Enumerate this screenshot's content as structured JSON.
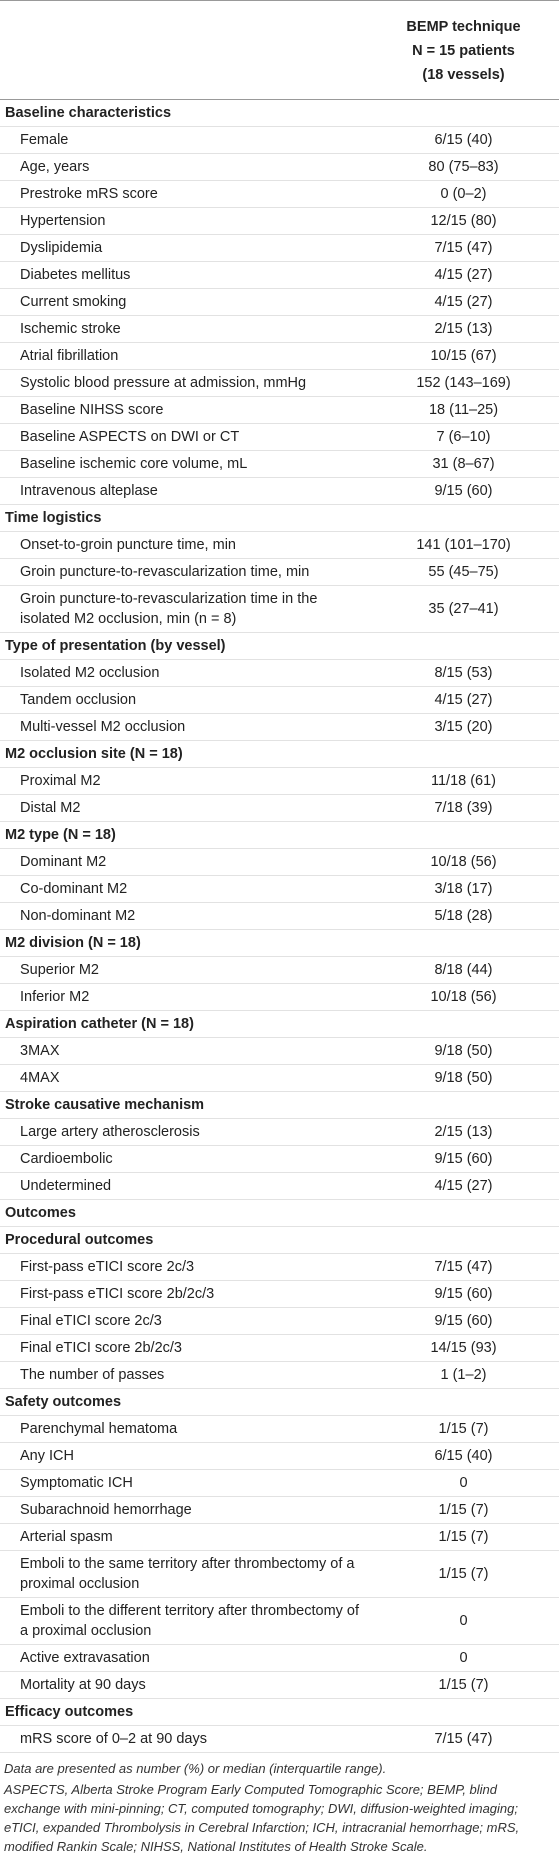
{
  "header": {
    "col2": [
      "BEMP technique",
      "N = 15 patients",
      "(18 vessels)"
    ]
  },
  "rows": [
    {
      "label": "Baseline characteristics",
      "section": true
    },
    {
      "label": "Female",
      "value": "6/15 (40)"
    },
    {
      "label": "Age, years",
      "value": "80 (75–83)"
    },
    {
      "label": "Prestroke mRS score",
      "value": "0 (0–2)"
    },
    {
      "label": "Hypertension",
      "value": "12/15 (80)"
    },
    {
      "label": "Dyslipidemia",
      "value": "7/15 (47)"
    },
    {
      "label": "Diabetes mellitus",
      "value": "4/15 (27)"
    },
    {
      "label": "Current smoking",
      "value": "4/15 (27)"
    },
    {
      "label": "Ischemic stroke",
      "value": "2/15 (13)"
    },
    {
      "label": "Atrial fibrillation",
      "value": "10/15 (67)"
    },
    {
      "label": "Systolic blood pressure at admission, mmHg",
      "value": "152 (143–169)"
    },
    {
      "label": "Baseline NIHSS score",
      "value": "18 (11–25)"
    },
    {
      "label": "Baseline ASPECTS on DWI or CT",
      "value": "7 (6–10)"
    },
    {
      "label": "Baseline ischemic core volume, mL",
      "value": "31 (8–67)"
    },
    {
      "label": "Intravenous alteplase",
      "value": "9/15 (60)"
    },
    {
      "label": "Time logistics",
      "section": true
    },
    {
      "label": "Onset-to-groin puncture time, min",
      "value": "141 (101–170)"
    },
    {
      "label": "Groin puncture-to-revascularization time, min",
      "value": "55 (45–75)"
    },
    {
      "label": "Groin puncture-to-revascularization time in the isolated M2 occlusion, min (n = 8)",
      "value": "35 (27–41)"
    },
    {
      "label": "Type of presentation (by vessel)",
      "section": true
    },
    {
      "label": "Isolated M2 occlusion",
      "value": "8/15 (53)"
    },
    {
      "label": "Tandem occlusion",
      "value": "4/15 (27)"
    },
    {
      "label": "Multi-vessel M2 occlusion",
      "value": "3/15 (20)"
    },
    {
      "label": "M2 occlusion site (N = 18)",
      "section": true
    },
    {
      "label": "Proximal M2",
      "value": "11/18 (61)"
    },
    {
      "label": "Distal M2",
      "value": "7/18 (39)"
    },
    {
      "label": "M2 type (N = 18)",
      "section": true
    },
    {
      "label": "Dominant M2",
      "value": "10/18 (56)"
    },
    {
      "label": "Co-dominant M2",
      "value": "3/18 (17)"
    },
    {
      "label": "Non-dominant M2",
      "value": "5/18 (28)"
    },
    {
      "label": "M2 division (N = 18)",
      "section": true
    },
    {
      "label": "Superior M2",
      "value": "8/18 (44)"
    },
    {
      "label": "Inferior M2",
      "value": "10/18 (56)"
    },
    {
      "label": "Aspiration catheter (N = 18)",
      "section": true
    },
    {
      "label": "3MAX",
      "value": "9/18 (50)"
    },
    {
      "label": "4MAX",
      "value": "9/18 (50)"
    },
    {
      "label": "Stroke causative mechanism",
      "section": true
    },
    {
      "label": "Large artery atherosclerosis",
      "value": "2/15 (13)"
    },
    {
      "label": "Cardioembolic",
      "value": "9/15 (60)"
    },
    {
      "label": "Undetermined",
      "value": "4/15 (27)"
    },
    {
      "label": "Outcomes",
      "section": true
    },
    {
      "label": "Procedural outcomes",
      "section": true
    },
    {
      "label": "First-pass eTICI score 2c/3",
      "value": "7/15 (47)"
    },
    {
      "label": "First-pass eTICI score 2b/2c/3",
      "value": "9/15 (60)"
    },
    {
      "label": "Final eTICI score 2c/3",
      "value": "9/15 (60)"
    },
    {
      "label": "Final eTICI score 2b/2c/3",
      "value": "14/15 (93)"
    },
    {
      "label": "The number of passes",
      "value": "1 (1–2)"
    },
    {
      "label": "Safety outcomes",
      "section": true
    },
    {
      "label": "Parenchymal hematoma",
      "value": "1/15 (7)"
    },
    {
      "label": "Any ICH",
      "value": "6/15 (40)"
    },
    {
      "label": "Symptomatic ICH",
      "value": "0"
    },
    {
      "label": "Subarachnoid hemorrhage",
      "value": "1/15 (7)"
    },
    {
      "label": "Arterial spasm",
      "value": "1/15 (7)"
    },
    {
      "label": "Emboli to the same territory after thrombectomy of a proximal occlusion",
      "value": "1/15 (7)"
    },
    {
      "label": "Emboli to the different territory after thrombectomy of a proximal occlusion",
      "value": "0"
    },
    {
      "label": "Active extravasation",
      "value": "0"
    },
    {
      "label": "Mortality at 90 days",
      "value": "1/15 (7)"
    },
    {
      "label": "Efficacy outcomes",
      "section": true
    },
    {
      "label": "mRS score of 0–2 at 90 days",
      "value": "7/15 (47)"
    }
  ],
  "footnotes": [
    "Data are presented as number (%) or median (interquartile range).",
    "ASPECTS, Alberta Stroke Program Early Computed Tomographic Score; BEMP, blind exchange with mini-pinning; CT, computed tomography; DWI, diffusion-weighted imaging; eTICI, expanded Thrombolysis in Cerebral Infarction; ICH, intracranial hemorrhage; mRS, modified Rankin Scale; NIHSS, National Institutes of Health Stroke Scale."
  ]
}
